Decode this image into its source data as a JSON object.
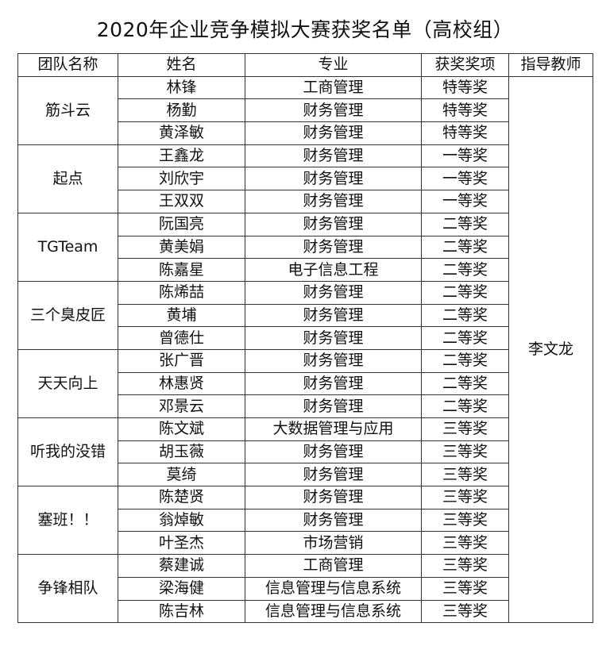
{
  "title": "2020年企业竞争模拟大赛获奖名单（高校组）",
  "headers": [
    "团队名称",
    "姓名",
    "专业",
    "获奖奖项",
    "指导教师"
  ],
  "teacher": "李文龙",
  "teams": [
    {
      "name": "筋斗云",
      "members": [
        [
          "林锋",
          "工商管理",
          "特等奖"
        ],
        [
          "杨勤",
          "财务管理",
          "特等奖"
        ],
        [
          "黄泽敏",
          "财务管理",
          "特等奖"
        ]
      ]
    },
    {
      "name": "起点",
      "members": [
        [
          "王鑫龙",
          "财务管理",
          "一等奖"
        ],
        [
          "刘欣宇",
          "财务管理",
          "一等奖"
        ],
        [
          "王双双",
          "财务管理",
          "一等奖"
        ]
      ]
    },
    {
      "name": "TGTeam",
      "members": [
        [
          "阮国亮",
          "财务管理",
          "二等奖"
        ],
        [
          "黄美娟",
          "财务管理",
          "二等奖"
        ],
        [
          "陈嘉星",
          "电子信息工程",
          "二等奖"
        ]
      ]
    },
    {
      "name": "三个臭皮匠",
      "members": [
        [
          "陈烯喆",
          "财务管理",
          "二等奖"
        ],
        [
          "黄埔",
          "财务管理",
          "二等奖"
        ],
        [
          "曾德仕",
          "财务管理",
          "二等奖"
        ]
      ]
    },
    {
      "name": "天天向上",
      "members": [
        [
          "张广晋",
          "财务管理",
          "二等奖"
        ],
        [
          "林惠贤",
          "财务管理",
          "二等奖"
        ],
        [
          "邓景云",
          "财务管理",
          "二等奖"
        ]
      ]
    },
    {
      "name": "听我的没错",
      "members": [
        [
          "陈文斌",
          "大数据管理与应用",
          "三等奖"
        ],
        [
          "胡玉薇",
          "财务管理",
          "三等奖"
        ],
        [
          "莫绮",
          "财务管理",
          "三等奖"
        ]
      ]
    },
    {
      "name": "塞班！！",
      "members": [
        [
          "陈楚贤",
          "财务管理",
          "三等奖"
        ],
        [
          "翁焯敏",
          "财务管理",
          "三等奖"
        ],
        [
          "叶圣杰",
          "市场营销",
          "三等奖"
        ]
      ]
    },
    {
      "name": "争锋相队",
      "members": [
        [
          "蔡建诚",
          "工商管理",
          "三等奖"
        ],
        [
          "梁海健",
          "信息管理与信息系统",
          "三等奖"
        ],
        [
          "陈吉林",
          "信息管理与信息系统",
          "三等奖"
        ]
      ]
    }
  ]
}
